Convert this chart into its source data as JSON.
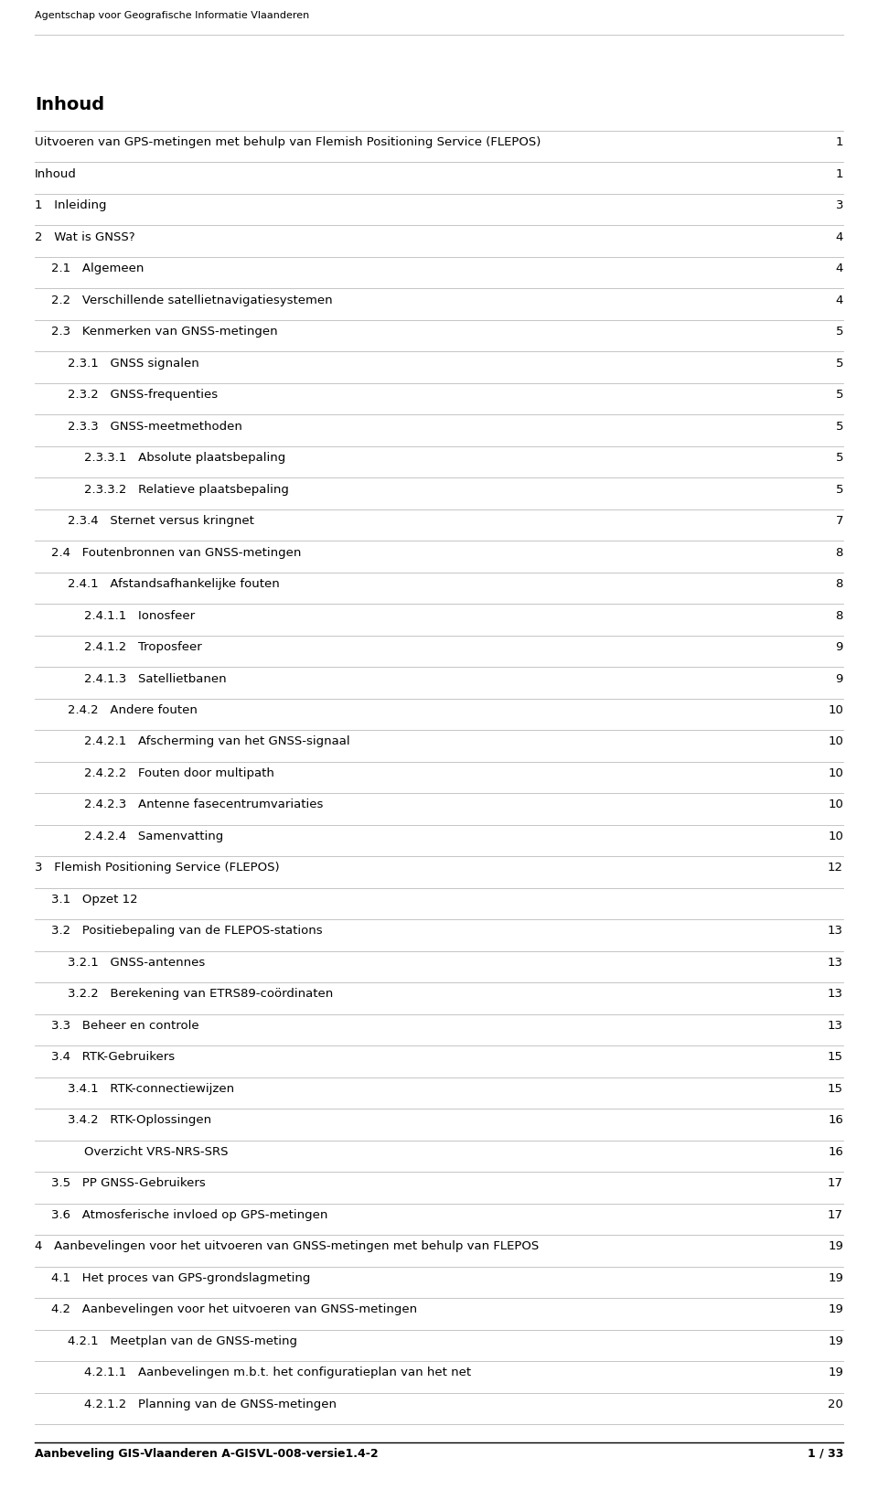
{
  "header_text": "Agentschap voor Geografische Informatie Vlaanderen",
  "footer_left": "Aanbeveling GIS-Vlaanderen A-GISVL-008-versie1.4-2",
  "footer_right": "1 / 33",
  "title": "Inhoud",
  "entries": [
    {
      "indent": 0,
      "text": "Uitvoeren van GPS-metingen met behulp van Flemish Positioning Service (FLEPOS)",
      "page": "1",
      "bold": false
    },
    {
      "indent": 0,
      "text": "Inhoud",
      "page": "1",
      "bold": false
    },
    {
      "indent": 0,
      "text": "1   Inleiding",
      "page": "3",
      "bold": false
    },
    {
      "indent": 0,
      "text": "2   Wat is GNSS?",
      "page": "4",
      "bold": false
    },
    {
      "indent": 1,
      "text": "2.1   Algemeen",
      "page": "4",
      "bold": false
    },
    {
      "indent": 1,
      "text": "2.2   Verschillende satellietnavigatiesystemen",
      "page": "4",
      "bold": false
    },
    {
      "indent": 1,
      "text": "2.3   Kenmerken van GNSS-metingen",
      "page": "5",
      "bold": false
    },
    {
      "indent": 2,
      "text": "2.3.1   GNSS signalen",
      "page": "5",
      "bold": false
    },
    {
      "indent": 2,
      "text": "2.3.2   GNSS-frequenties",
      "page": "5",
      "bold": false
    },
    {
      "indent": 2,
      "text": "2.3.3   GNSS-meetmethoden",
      "page": "5",
      "bold": false
    },
    {
      "indent": 3,
      "text": "2.3.3.1   Absolute plaatsbepaling",
      "page": "5",
      "bold": false
    },
    {
      "indent": 3,
      "text": "2.3.3.2   Relatieve plaatsbepaling",
      "page": "5",
      "bold": false
    },
    {
      "indent": 2,
      "text": "2.3.4   Sternet versus kringnet",
      "page": "7",
      "bold": false
    },
    {
      "indent": 1,
      "text": "2.4   Foutenbronnen van GNSS-metingen",
      "page": "8",
      "bold": false
    },
    {
      "indent": 2,
      "text": "2.4.1   Afstandsafhankelijke fouten",
      "page": "8",
      "bold": false
    },
    {
      "indent": 3,
      "text": "2.4.1.1   Ionosfeer",
      "page": "8",
      "bold": false
    },
    {
      "indent": 3,
      "text": "2.4.1.2   Troposfeer",
      "page": "9",
      "bold": false
    },
    {
      "indent": 3,
      "text": "2.4.1.3   Satellietbanen",
      "page": "9",
      "bold": false
    },
    {
      "indent": 2,
      "text": "2.4.2   Andere fouten",
      "page": "10",
      "bold": false
    },
    {
      "indent": 3,
      "text": "2.4.2.1   Afscherming van het GNSS-signaal",
      "page": "10",
      "bold": false
    },
    {
      "indent": 3,
      "text": "2.4.2.2   Fouten door multipath",
      "page": "10",
      "bold": false
    },
    {
      "indent": 3,
      "text": "2.4.2.3   Antenne fasecentrumvariaties",
      "page": "10",
      "bold": false
    },
    {
      "indent": 3,
      "text": "2.4.2.4   Samenvatting",
      "page": "10",
      "bold": false
    },
    {
      "indent": 0,
      "text": "3   Flemish Positioning Service (FLEPOS)",
      "page": "12",
      "bold": false
    },
    {
      "indent": 1,
      "text": "3.1   Opzet 12",
      "page": "",
      "bold": false
    },
    {
      "indent": 1,
      "text": "3.2   Positiebepaling van de FLEPOS-stations",
      "page": "13",
      "bold": false
    },
    {
      "indent": 2,
      "text": "3.2.1   GNSS-antennes",
      "page": "13",
      "bold": false
    },
    {
      "indent": 2,
      "text": "3.2.2   Berekening van ETRS89-coördinaten",
      "page": "13",
      "bold": false
    },
    {
      "indent": 1,
      "text": "3.3   Beheer en controle",
      "page": "13",
      "bold": false
    },
    {
      "indent": 1,
      "text": "3.4   RTK-Gebruikers",
      "page": "15",
      "bold": false
    },
    {
      "indent": 2,
      "text": "3.4.1   RTK-connectiewijzen",
      "page": "15",
      "bold": false
    },
    {
      "indent": 2,
      "text": "3.4.2   RTK-Oplossingen",
      "page": "16",
      "bold": false
    },
    {
      "indent": 3,
      "text": "Overzicht VRS-NRS-SRS",
      "page": "16",
      "bold": false
    },
    {
      "indent": 1,
      "text": "3.5   PP GNSS-Gebruikers",
      "page": "17",
      "bold": false
    },
    {
      "indent": 1,
      "text": "3.6   Atmosferische invloed op GPS-metingen",
      "page": "17",
      "bold": false
    },
    {
      "indent": 0,
      "text": "4   Aanbevelingen voor het uitvoeren van GNSS-metingen met behulp van FLEPOS",
      "page": "19",
      "bold": false
    },
    {
      "indent": 1,
      "text": "4.1   Het proces van GPS-grondslagmeting",
      "page": "19",
      "bold": false
    },
    {
      "indent": 1,
      "text": "4.2   Aanbevelingen voor het uitvoeren van GNSS-metingen",
      "page": "19",
      "bold": false
    },
    {
      "indent": 2,
      "text": "4.2.1   Meetplan van de GNSS-meting",
      "page": "19",
      "bold": false
    },
    {
      "indent": 3,
      "text": "4.2.1.1   Aanbevelingen m.b.t. het configuratieplan van het net",
      "page": "19",
      "bold": false
    },
    {
      "indent": 3,
      "text": "4.2.1.2   Planning van de GNSS-metingen",
      "page": "20",
      "bold": false
    }
  ],
  "bg_color": "#ffffff",
  "text_color": "#000000",
  "line_color": "#bbbbbb",
  "footer_line_color": "#000000",
  "header_color": "#000000",
  "indent_size": 18,
  "font_size": 9.5,
  "title_font_size": 14,
  "header_font_size": 8,
  "footer_font_size": 9
}
